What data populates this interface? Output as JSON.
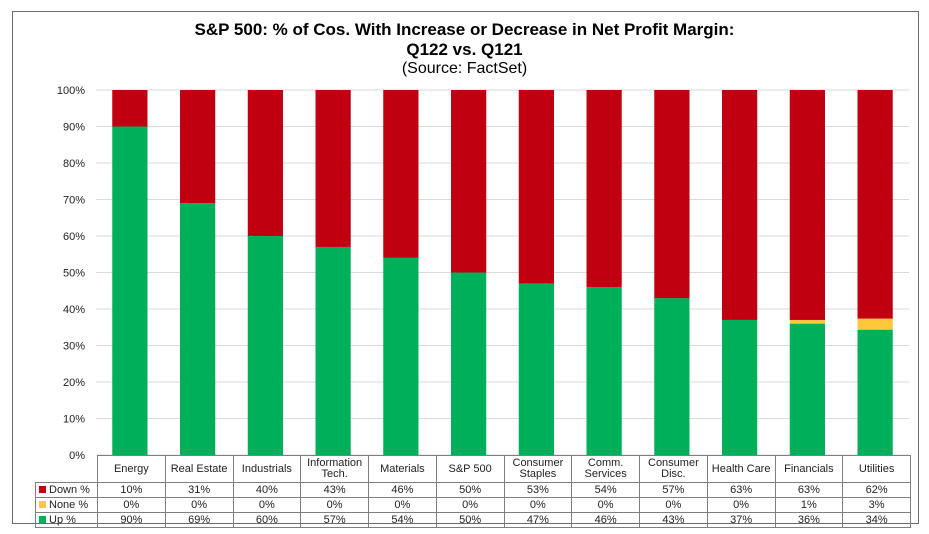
{
  "chart_data": {
    "type": "bar",
    "stacked": true,
    "normalized": true,
    "title": "S&P 500: % of Cos. With Increase or Decrease in Net Profit Margin:",
    "subtitle": "Q122 vs. Q121",
    "source": "(Source: FactSet)",
    "xlabel": "",
    "ylabel": "",
    "ylim": [
      0,
      100
    ],
    "yticks": [
      "0%",
      "10%",
      "20%",
      "30%",
      "40%",
      "50%",
      "60%",
      "70%",
      "80%",
      "90%",
      "100%"
    ],
    "grid": true,
    "legend": "data-table-bottom",
    "categories": [
      [
        "Energy"
      ],
      [
        "Real Estate"
      ],
      [
        "Industrials"
      ],
      [
        "Information",
        "Tech."
      ],
      [
        "Materials"
      ],
      [
        "S&P 500"
      ],
      [
        "Consumer",
        "Staples"
      ],
      [
        "Comm.",
        "Services"
      ],
      [
        "Consumer",
        "Disc."
      ],
      [
        "Health Care"
      ],
      [
        "Financials"
      ],
      [
        "Utilities"
      ]
    ],
    "series": [
      {
        "name": "Down %",
        "color": "#C00010",
        "values": [
          10,
          31,
          40,
          43,
          46,
          50,
          53,
          54,
          57,
          63,
          63,
          62
        ]
      },
      {
        "name": "None %",
        "color": "#FFC83C",
        "values": [
          0,
          0,
          0,
          0,
          0,
          0,
          0,
          0,
          0,
          0,
          1,
          3
        ]
      },
      {
        "name": "Up %",
        "color": "#00AF5A",
        "values": [
          90,
          69,
          60,
          57,
          54,
          50,
          47,
          46,
          43,
          37,
          36,
          34
        ]
      }
    ],
    "table_rows": [
      {
        "name": "Down %",
        "cells": [
          "10%",
          "31%",
          "40%",
          "43%",
          "46%",
          "50%",
          "53%",
          "54%",
          "57%",
          "63%",
          "63%",
          "62%"
        ]
      },
      {
        "name": "None %",
        "cells": [
          "0%",
          "0%",
          "0%",
          "0%",
          "0%",
          "0%",
          "0%",
          "0%",
          "0%",
          "0%",
          "1%",
          "3%"
        ]
      },
      {
        "name": "Up %",
        "cells": [
          "90%",
          "69%",
          "60%",
          "57%",
          "54%",
          "50%",
          "47%",
          "46%",
          "43%",
          "37%",
          "36%",
          "34%"
        ]
      }
    ]
  }
}
